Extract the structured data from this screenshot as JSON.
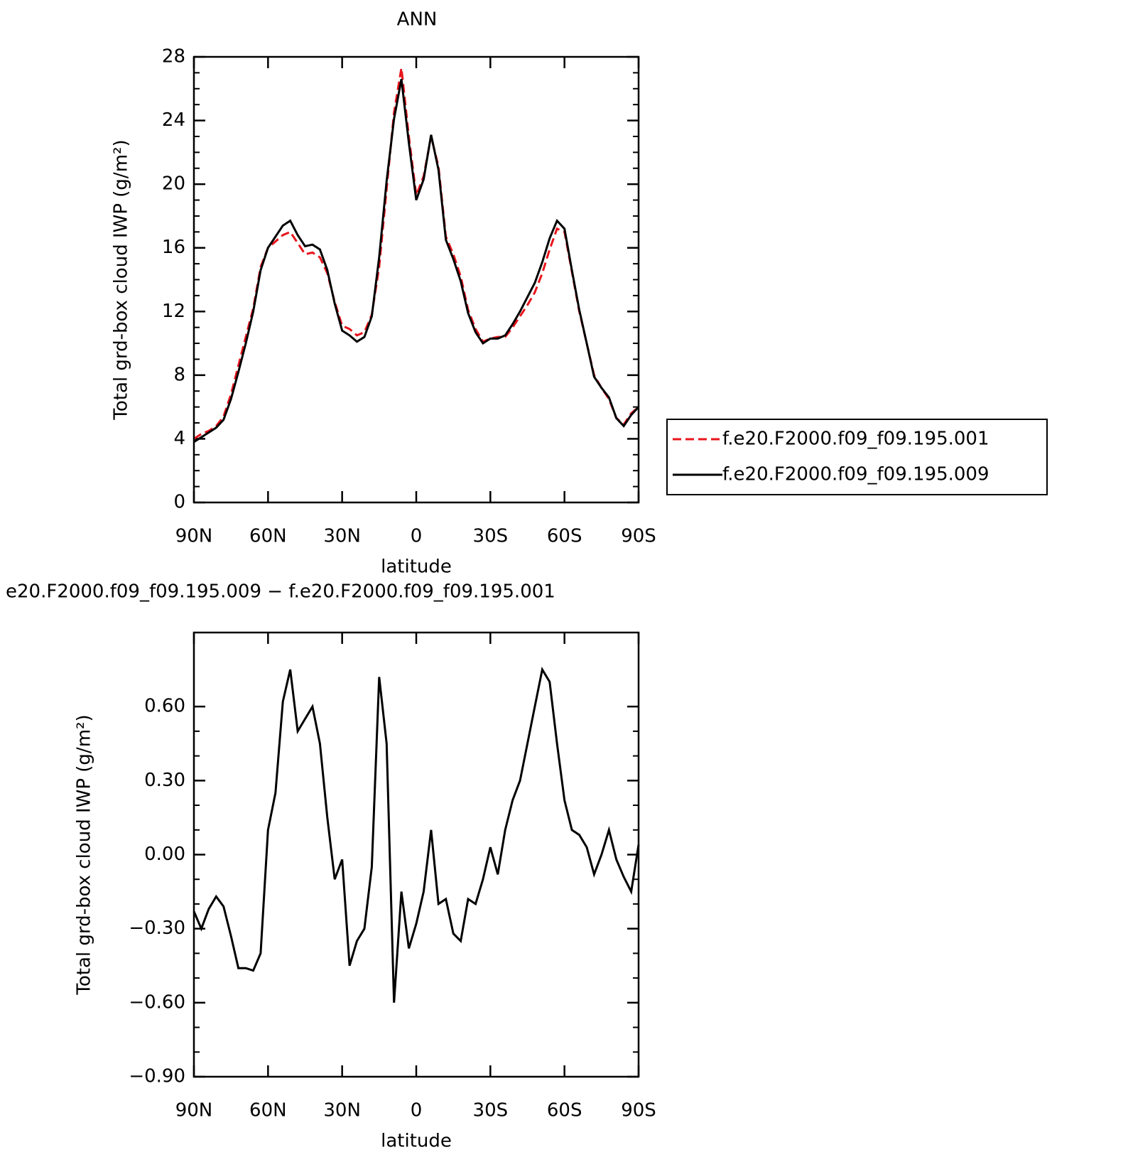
{
  "chart_data": [
    {
      "type": "line",
      "title": "ANN",
      "x_label": "latitude",
      "y_label": "Total grd-box cloud IWP (g/m²)",
      "x": [
        90,
        87,
        84,
        81,
        78,
        75,
        72,
        69,
        66,
        63,
        60,
        57,
        54,
        51,
        48,
        45,
        42,
        39,
        36,
        33,
        30,
        27,
        24,
        21,
        18,
        15,
        12,
        9,
        6,
        3,
        0,
        -3,
        -6,
        -9,
        -12,
        -15,
        -18,
        -21,
        -24,
        -27,
        -30,
        -33,
        -36,
        -39,
        -42,
        -45,
        -48,
        -51,
        -54,
        -57,
        -60,
        -63,
        -66,
        -69,
        -72,
        -75,
        -78,
        -81,
        -84,
        -87,
        -90
      ],
      "xlim": [
        90,
        -90
      ],
      "xticks": [
        {
          "value": 90,
          "label": "90N"
        },
        {
          "value": 60,
          "label": "60N"
        },
        {
          "value": 30,
          "label": "30N"
        },
        0,
        {
          "value": -30,
          "label": "30S"
        },
        {
          "value": -60,
          "label": "60S"
        },
        {
          "value": -90,
          "label": "90S"
        }
      ],
      "ylim": [
        0,
        28
      ],
      "yticks": [
        0,
        4,
        8,
        12,
        16,
        20,
        24,
        28
      ],
      "legend": "right",
      "series": [
        {
          "name": "f.e20.F2000.f09_f09.195.001",
          "color": "#e8141c",
          "line_style": "dashed",
          "values": [
            4.0,
            4.3,
            4.5,
            4.8,
            5.4,
            6.8,
            8.6,
            10.4,
            12.2,
            14.8,
            16.0,
            16.4,
            16.8,
            17.0,
            16.3,
            15.6,
            15.7,
            15.4,
            14.4,
            12.6,
            11.1,
            10.9,
            10.5,
            10.7,
            11.8,
            14.8,
            19.7,
            24.5,
            27.3,
            23.0,
            19.3,
            20.5,
            23.0,
            21.1,
            16.7,
            15.6,
            14.2,
            12.1,
            10.9,
            10.1,
            10.3,
            10.4,
            10.4,
            11.0,
            11.7,
            12.4,
            13.2,
            14.4,
            15.9,
            17.2,
            17.0,
            14.5,
            12.0,
            10.0,
            8.0,
            7.2,
            6.5,
            5.3,
            4.9,
            5.6,
            6.0
          ]
        },
        {
          "name": "f.e20.F2000.f09_f09.195.009",
          "color": "#000000",
          "line_style": "solid",
          "values": [
            3.8,
            4.1,
            4.4,
            4.7,
            5.2,
            6.5,
            8.2,
            10.0,
            12.0,
            14.6,
            16.0,
            16.7,
            17.4,
            17.7,
            16.8,
            16.1,
            16.2,
            15.9,
            14.6,
            12.5,
            10.8,
            10.5,
            10.1,
            10.4,
            11.7,
            15.4,
            20.2,
            24.1,
            26.6,
            22.6,
            19.0,
            20.3,
            23.1,
            20.9,
            16.5,
            15.3,
            13.9,
            11.9,
            10.7,
            10.0,
            10.3,
            10.3,
            10.5,
            11.2,
            12.0,
            12.9,
            13.8,
            15.1,
            16.6,
            17.7,
            17.2,
            14.6,
            12.1,
            10.0,
            7.9,
            7.2,
            6.6,
            5.3,
            4.8,
            5.5,
            6.0
          ]
        }
      ]
    },
    {
      "type": "line",
      "title": "e20.F2000.f09_f09.195.009 − f.e20.F2000.f09_f09.195.001",
      "x_label": "latitude",
      "y_label": "Total grd-box cloud IWP (g/m²)",
      "x": [
        90,
        87,
        84,
        81,
        78,
        75,
        72,
        69,
        66,
        63,
        60,
        57,
        54,
        51,
        48,
        45,
        42,
        39,
        36,
        33,
        30,
        27,
        24,
        21,
        18,
        15,
        12,
        9,
        6,
        3,
        0,
        -3,
        -6,
        -9,
        -12,
        -15,
        -18,
        -21,
        -24,
        -27,
        -30,
        -33,
        -36,
        -39,
        -42,
        -45,
        -48,
        -51,
        -54,
        -57,
        -60,
        -63,
        -66,
        -69,
        -72,
        -75,
        -78,
        -81,
        -84,
        -87,
        -90
      ],
      "xlim": [
        90,
        -90
      ],
      "xticks": [
        {
          "value": 90,
          "label": "90N"
        },
        {
          "value": 60,
          "label": "60N"
        },
        {
          "value": 30,
          "label": "30N"
        },
        0,
        {
          "value": -30,
          "label": "30S"
        },
        {
          "value": -60,
          "label": "60S"
        },
        {
          "value": -90,
          "label": "90S"
        }
      ],
      "ylim": [
        -0.9,
        0.9
      ],
      "yticks": [
        {
          "value": -0.9,
          "label": "−0.90"
        },
        {
          "value": -0.6,
          "label": "−0.60"
        },
        {
          "value": -0.3,
          "label": "−0.30"
        },
        {
          "value": 0,
          "label": "0.00"
        },
        {
          "value": 0.3,
          "label": "0.30"
        },
        {
          "value": 0.6,
          "label": "0.60"
        }
      ],
      "series": [
        {
          "color": "#000000",
          "line_style": "solid",
          "values": [
            -0.23,
            -0.3,
            -0.22,
            -0.17,
            -0.21,
            -0.33,
            -0.46,
            -0.46,
            -0.47,
            -0.4,
            0.1,
            0.25,
            0.62,
            0.75,
            0.5,
            0.55,
            0.6,
            0.45,
            0.15,
            -0.1,
            -0.02,
            -0.45,
            -0.35,
            -0.3,
            -0.05,
            0.72,
            0.45,
            -0.6,
            -0.15,
            -0.38,
            -0.28,
            -0.15,
            0.1,
            -0.2,
            -0.18,
            -0.32,
            -0.35,
            -0.18,
            -0.2,
            -0.1,
            0.03,
            -0.08,
            0.1,
            0.22,
            0.3,
            0.45,
            0.6,
            0.75,
            0.7,
            0.45,
            0.22,
            0.1,
            0.08,
            0.03,
            -0.08,
            0.0,
            0.1,
            -0.02,
            -0.09,
            -0.15,
            0.04
          ]
        }
      ]
    }
  ]
}
